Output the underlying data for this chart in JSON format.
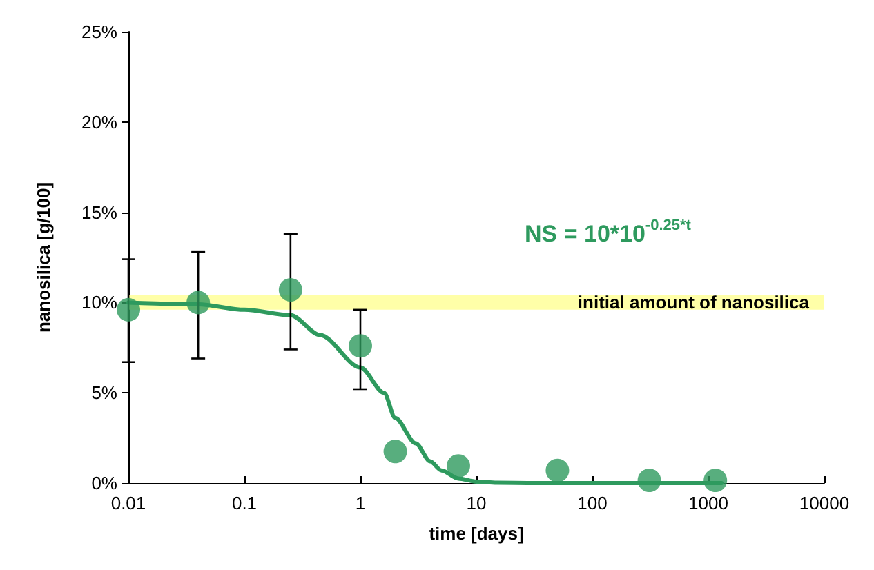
{
  "chart_data": {
    "type": "scatter",
    "xlabel": "time [days]",
    "ylabel": "nanosilica [g/100]",
    "x": [
      0.01,
      0.04,
      0.25,
      1,
      2,
      7,
      50,
      310,
      1150
    ],
    "series": [
      {
        "type": "scatter",
        "color": "#2e9a5e",
        "values": [
          9.6,
          10.0,
          10.7,
          7.6,
          1.75,
          0.95,
          0.7,
          0.15,
          0.15
        ],
        "errors": [
          [
            6.7,
            12.4
          ],
          [
            6.9,
            12.8
          ],
          [
            7.4,
            13.8
          ],
          [
            5.2,
            9.6
          ],
          null,
          null,
          null,
          null,
          null
        ],
        "marker": "circle"
      },
      {
        "type": "line",
        "color": "#2e9a5e",
        "x": [
          0.01,
          0.04,
          0.1,
          0.25,
          0.45,
          1,
          1.6,
          2,
          3,
          4,
          5,
          7,
          10,
          15,
          30,
          100,
          1300
        ],
        "values": [
          10,
          9.9,
          9.6,
          9.3,
          8.2,
          6.4,
          5.0,
          3.6,
          2.2,
          1.2,
          0.7,
          0.25,
          0.08,
          0.02,
          0,
          0,
          0
        ],
        "marker": "none"
      }
    ],
    "xlim": [
      0.01,
      10000
    ],
    "xticks": [
      0.01,
      0.1,
      1,
      10,
      100,
      1000,
      10000
    ],
    "ylim": [
      0,
      25
    ],
    "yticks": [
      {
        "value": 0,
        "label": "0%"
      },
      {
        "value": 5,
        "label": "5%"
      },
      {
        "value": 10,
        "label": "10%"
      },
      {
        "value": 15,
        "label": "15%"
      },
      {
        "value": 20,
        "label": "20%"
      },
      {
        "value": 25,
        "label": "25%"
      }
    ],
    "log": "x",
    "grid": false,
    "bands": [
      {
        "axis": "y",
        "from": 9.6,
        "to": 10.4,
        "label": "initial amount of nanosilica",
        "color": "#ffff99"
      }
    ],
    "annotations": [
      "NS = 10*10$^{-0.25*t}$"
    ]
  }
}
